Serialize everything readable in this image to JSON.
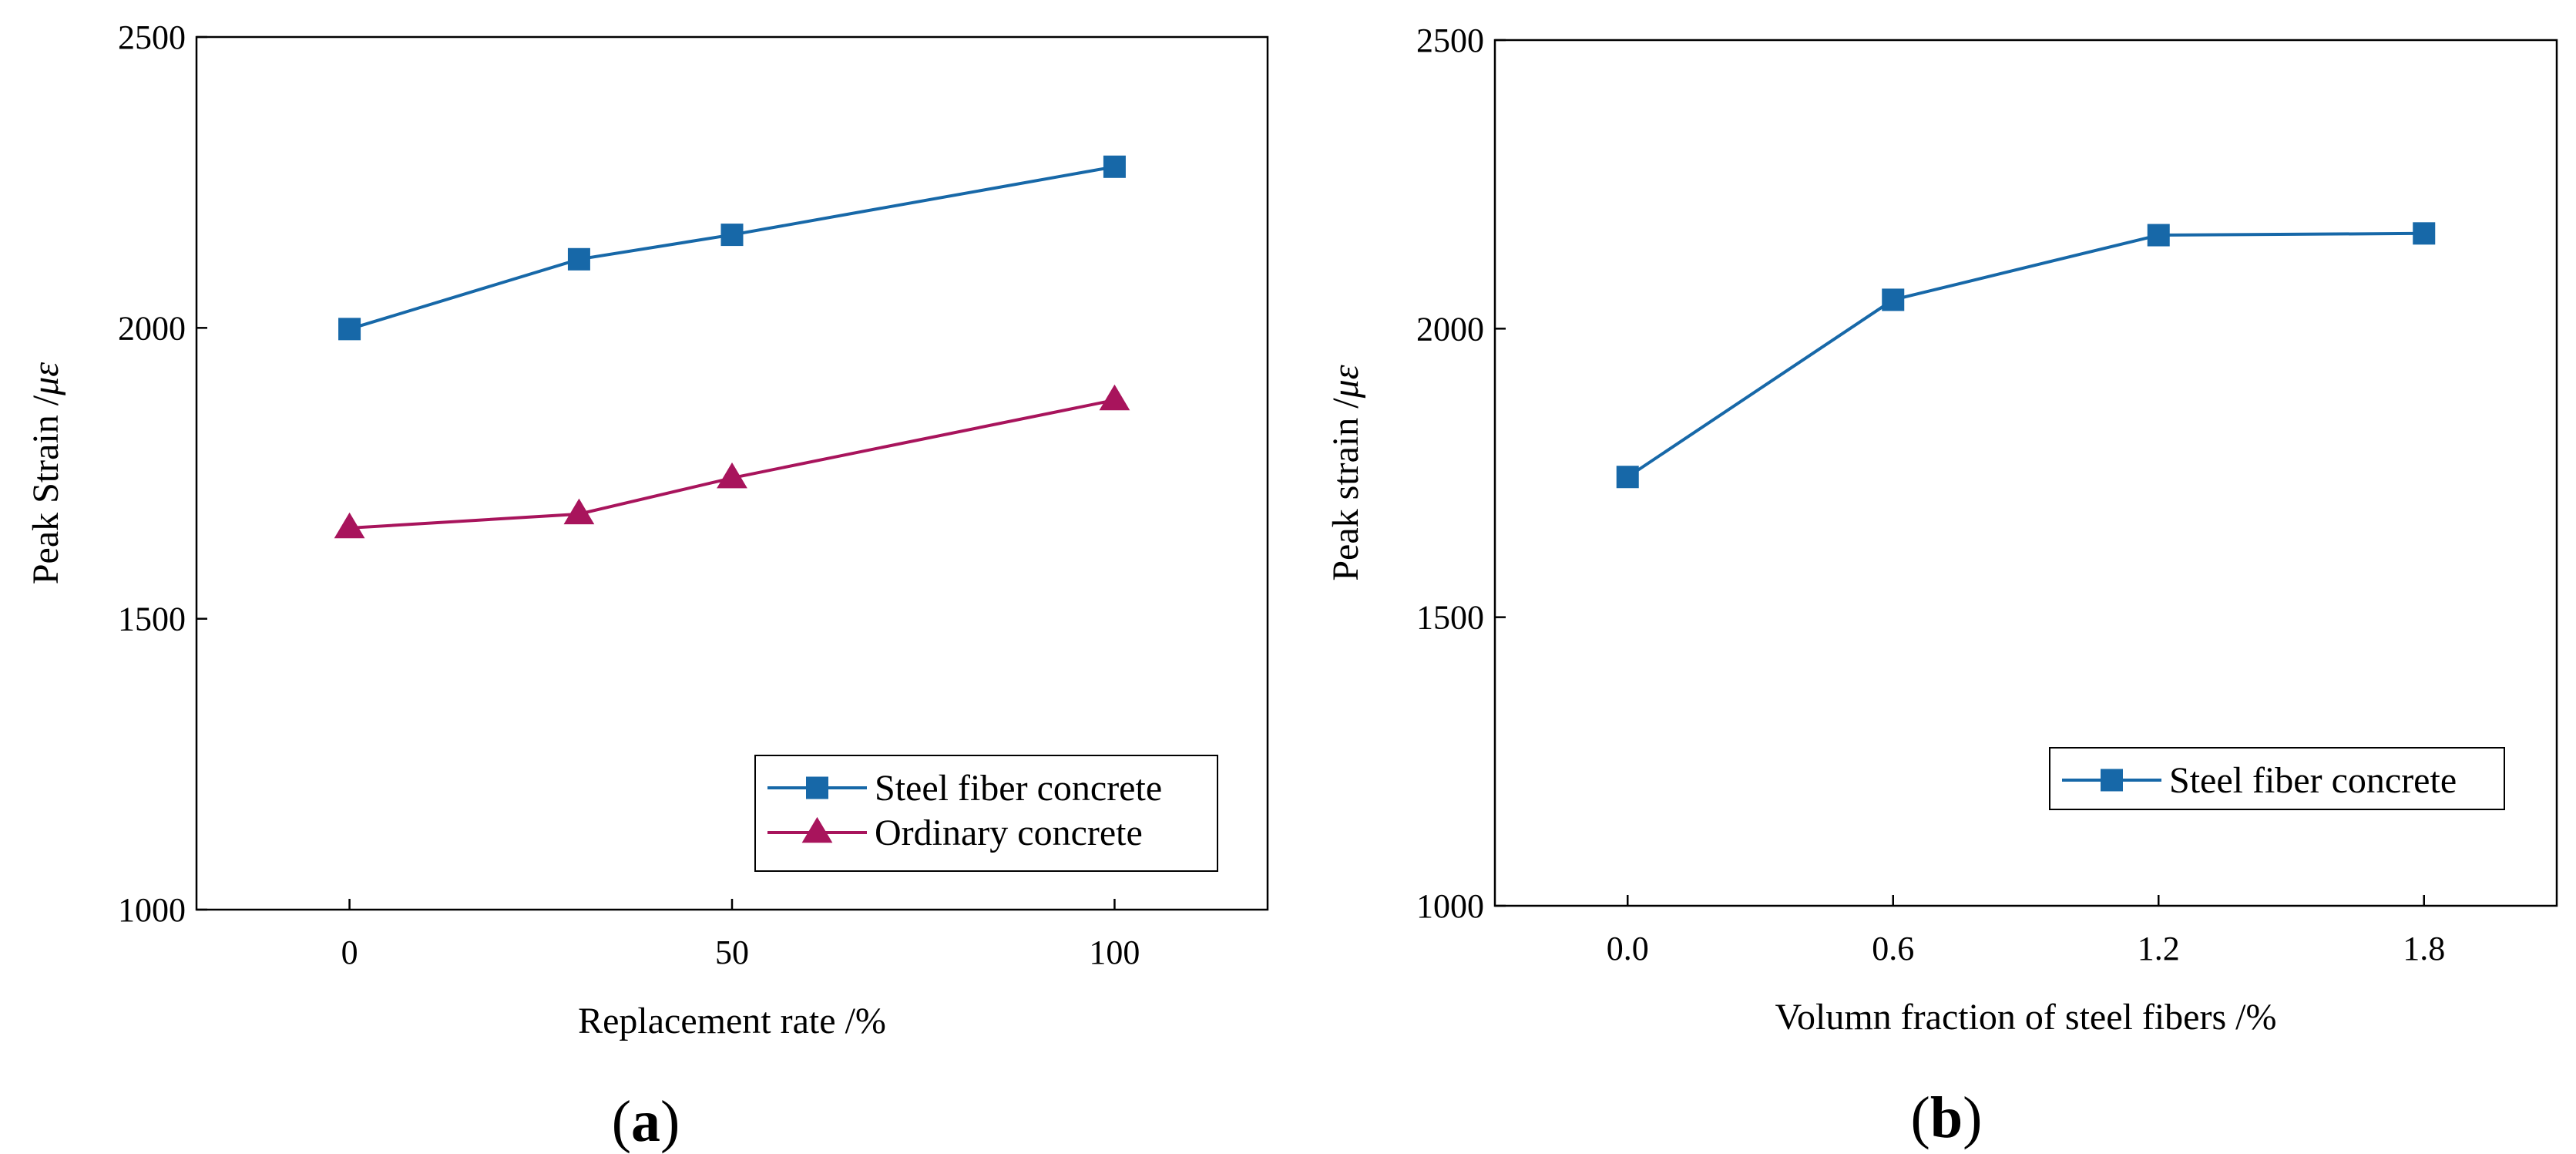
{
  "chart_data": [
    {
      "type": "line",
      "panel_label": "a",
      "x": [
        0,
        30,
        50,
        100
      ],
      "series": [
        {
          "name": "Steel fiber concrete",
          "values": [
            1998,
            2118,
            2160,
            2277
          ],
          "color": "#1768a8",
          "marker": "square"
        },
        {
          "name": "Ordinary concrete",
          "values": [
            1656,
            1680,
            1742,
            1876
          ],
          "color": "#a8145c",
          "marker": "triangle"
        }
      ],
      "xlabel": "Replacement rate /%",
      "ylabel_prefix": "Peak Strain /",
      "ylabel_unit": "με",
      "xlim": [
        -20,
        120
      ],
      "ylim": [
        1000,
        2500
      ],
      "xticks": [
        0,
        50,
        100
      ],
      "xtick_labels": [
        "0",
        "50",
        "100"
      ],
      "yticks": [
        1000,
        1500,
        2000,
        2500
      ],
      "ytick_labels": [
        "1000",
        "1500",
        "2000",
        "2500"
      ],
      "grid": false,
      "legend_position": "bottom-right"
    },
    {
      "type": "line",
      "panel_label": "b",
      "x": [
        0.0,
        0.6,
        1.2,
        1.8
      ],
      "series": [
        {
          "name": "Steel fiber concrete",
          "values": [
            1743,
            2050,
            2162,
            2165
          ],
          "color": "#1768a8",
          "marker": "square"
        }
      ],
      "xlabel": "Volumn fraction of steel fibers /%",
      "ylabel_prefix": "Peak strain /",
      "ylabel_unit": "με",
      "xlim": [
        -0.3,
        2.1
      ],
      "ylim": [
        1000,
        2500
      ],
      "xticks": [
        0.0,
        0.6,
        1.2,
        1.8
      ],
      "xtick_labels": [
        "0.0",
        "0.6",
        "1.2",
        "1.8"
      ],
      "yticks": [
        1000,
        1500,
        2000,
        2500
      ],
      "ytick_labels": [
        "1000",
        "1500",
        "2000",
        "2500"
      ],
      "grid": false,
      "legend_position": "bottom-right"
    }
  ]
}
